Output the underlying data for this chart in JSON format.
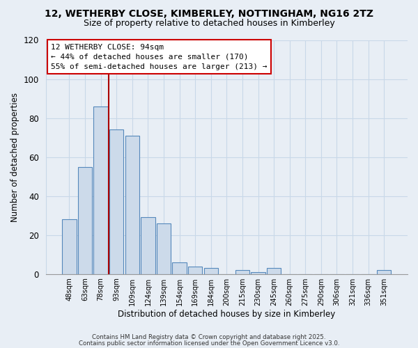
{
  "title": "12, WETHERBY CLOSE, KIMBERLEY, NOTTINGHAM, NG16 2TZ",
  "subtitle": "Size of property relative to detached houses in Kimberley",
  "xlabel": "Distribution of detached houses by size in Kimberley",
  "ylabel": "Number of detached properties",
  "bar_labels": [
    "48sqm",
    "63sqm",
    "78sqm",
    "93sqm",
    "109sqm",
    "124sqm",
    "139sqm",
    "154sqm",
    "169sqm",
    "184sqm",
    "200sqm",
    "215sqm",
    "230sqm",
    "245sqm",
    "260sqm",
    "275sqm",
    "290sqm",
    "306sqm",
    "321sqm",
    "336sqm",
    "351sqm"
  ],
  "bar_values": [
    28,
    55,
    86,
    74,
    71,
    29,
    26,
    6,
    4,
    3,
    0,
    2,
    1,
    3,
    0,
    0,
    0,
    0,
    0,
    0,
    2
  ],
  "bar_color": "#ccdaea",
  "bar_edge_color": "#5588bb",
  "vline_x": 2.5,
  "vline_color": "#aa0000",
  "ylim": [
    0,
    120
  ],
  "annotation_title": "12 WETHERBY CLOSE: 94sqm",
  "annotation_line1": "← 44% of detached houses are smaller (170)",
  "annotation_line2": "55% of semi-detached houses are larger (213) →",
  "annotation_box_facecolor": "#ffffff",
  "annotation_box_edgecolor": "#cc0000",
  "footer_line1": "Contains HM Land Registry data © Crown copyright and database right 2025.",
  "footer_line2": "Contains public sector information licensed under the Open Government Licence v3.0.",
  "background_color": "#e8eef5",
  "grid_color": "#c8d8e8",
  "title_fontsize": 10,
  "subtitle_fontsize": 9
}
